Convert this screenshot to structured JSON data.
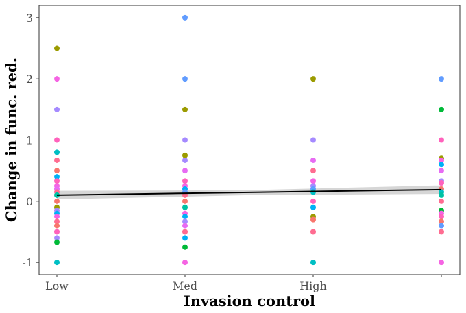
{
  "chart_data": {
    "type": "scatter",
    "title": "",
    "xlabel": "Invasion control",
    "ylabel": "Change in func. red.",
    "x_categories": [
      "Low",
      "Med",
      "High",
      ""
    ],
    "x_tick_labels": [
      "Low",
      "Med",
      "High"
    ],
    "ylim": [
      -1.2,
      3.2
    ],
    "yticks": [
      -1,
      0,
      1,
      2,
      3
    ],
    "grid": false,
    "legend": "none",
    "points": [
      {
        "x": 0,
        "y": 2.5,
        "color": "#9B9B00"
      },
      {
        "x": 0,
        "y": 2.0,
        "color": "#F564E3"
      },
      {
        "x": 0,
        "y": 1.5,
        "color": "#A58AFF"
      },
      {
        "x": 0,
        "y": 1.0,
        "color": "#FF62BC"
      },
      {
        "x": 0,
        "y": 0.8,
        "color": "#00BFC4"
      },
      {
        "x": 0,
        "y": 0.67,
        "color": "#FF6C91"
      },
      {
        "x": 0,
        "y": 0.5,
        "color": "#F8766D"
      },
      {
        "x": 0,
        "y": 0.4,
        "color": "#00B0F6"
      },
      {
        "x": 0,
        "y": 0.33,
        "color": "#FF62BC"
      },
      {
        "x": 0,
        "y": 0.25,
        "color": "#F564E3"
      },
      {
        "x": 0,
        "y": 0.2,
        "color": "#E76BF3"
      },
      {
        "x": 0,
        "y": 0.15,
        "color": "#FF6C91"
      },
      {
        "x": 0,
        "y": 0.1,
        "color": "#00C1A3"
      },
      {
        "x": 0,
        "y": 0.0,
        "color": "#F8766D"
      },
      {
        "x": 0,
        "y": -0.1,
        "color": "#9B9B00"
      },
      {
        "x": 0,
        "y": -0.15,
        "color": "#A58AFF"
      },
      {
        "x": 0,
        "y": -0.2,
        "color": "#00B0F6"
      },
      {
        "x": 0,
        "y": -0.25,
        "color": "#F564E3"
      },
      {
        "x": 0,
        "y": -0.33,
        "color": "#FF6C91"
      },
      {
        "x": 0,
        "y": -0.4,
        "color": "#F8766D"
      },
      {
        "x": 0,
        "y": -0.5,
        "color": "#FF62BC"
      },
      {
        "x": 0,
        "y": -0.6,
        "color": "#A58AFF"
      },
      {
        "x": 0,
        "y": -0.67,
        "color": "#00BA38"
      },
      {
        "x": 0,
        "y": -1.0,
        "color": "#00BFC4"
      },
      {
        "x": 1,
        "y": 3.0,
        "color": "#619CFF"
      },
      {
        "x": 1,
        "y": 2.0,
        "color": "#619CFF"
      },
      {
        "x": 1,
        "y": 1.5,
        "color": "#9B9B00"
      },
      {
        "x": 1,
        "y": 1.0,
        "color": "#A58AFF"
      },
      {
        "x": 1,
        "y": 0.75,
        "color": "#9B9B00"
      },
      {
        "x": 1,
        "y": 0.67,
        "color": "#A58AFF"
      },
      {
        "x": 1,
        "y": 0.5,
        "color": "#E76BF3"
      },
      {
        "x": 1,
        "y": 0.33,
        "color": "#FF62BC"
      },
      {
        "x": 1,
        "y": 0.25,
        "color": "#F564E3"
      },
      {
        "x": 1,
        "y": 0.2,
        "color": "#00B0F6"
      },
      {
        "x": 1,
        "y": 0.15,
        "color": "#619CFF"
      },
      {
        "x": 1,
        "y": 0.1,
        "color": "#FF6C91"
      },
      {
        "x": 1,
        "y": 0.0,
        "color": "#F8766D"
      },
      {
        "x": 1,
        "y": -0.1,
        "color": "#00C1A3"
      },
      {
        "x": 1,
        "y": -0.2,
        "color": "#F564E3"
      },
      {
        "x": 1,
        "y": -0.25,
        "color": "#00B0F6"
      },
      {
        "x": 1,
        "y": -0.33,
        "color": "#A58AFF"
      },
      {
        "x": 1,
        "y": -0.4,
        "color": "#E76BF3"
      },
      {
        "x": 1,
        "y": -0.5,
        "color": "#FF6C91"
      },
      {
        "x": 1,
        "y": -0.6,
        "color": "#00B0F6"
      },
      {
        "x": 1,
        "y": -0.75,
        "color": "#00BA38"
      },
      {
        "x": 1,
        "y": -1.0,
        "color": "#F564E3"
      },
      {
        "x": 2,
        "y": 2.0,
        "color": "#9B9B00"
      },
      {
        "x": 2,
        "y": 1.0,
        "color": "#A58AFF"
      },
      {
        "x": 2,
        "y": 0.67,
        "color": "#E76BF3"
      },
      {
        "x": 2,
        "y": 0.5,
        "color": "#FF6C91"
      },
      {
        "x": 2,
        "y": 0.33,
        "color": "#F564E3"
      },
      {
        "x": 2,
        "y": 0.25,
        "color": "#A58AFF"
      },
      {
        "x": 2,
        "y": 0.2,
        "color": "#619CFF"
      },
      {
        "x": 2,
        "y": 0.15,
        "color": "#00BFC4"
      },
      {
        "x": 2,
        "y": 0.0,
        "color": "#FF62BC"
      },
      {
        "x": 2,
        "y": -0.1,
        "color": "#00B0F6"
      },
      {
        "x": 2,
        "y": -0.25,
        "color": "#9B9B00"
      },
      {
        "x": 2,
        "y": -0.3,
        "color": "#F8766D"
      },
      {
        "x": 2,
        "y": -0.5,
        "color": "#FF6C91"
      },
      {
        "x": 2,
        "y": -1.0,
        "color": "#00BFC4"
      },
      {
        "x": 3,
        "y": 2.0,
        "color": "#619CFF"
      },
      {
        "x": 3,
        "y": 1.5,
        "color": "#00BA38"
      },
      {
        "x": 3,
        "y": 1.0,
        "color": "#FF62BC"
      },
      {
        "x": 3,
        "y": 0.7,
        "color": "#9B9B00"
      },
      {
        "x": 3,
        "y": 0.67,
        "color": "#F564E3"
      },
      {
        "x": 3,
        "y": 0.6,
        "color": "#00B0F6"
      },
      {
        "x": 3,
        "y": 0.5,
        "color": "#E76BF3"
      },
      {
        "x": 3,
        "y": 0.33,
        "color": "#A58AFF"
      },
      {
        "x": 3,
        "y": 0.3,
        "color": "#FF62BC"
      },
      {
        "x": 3,
        "y": 0.2,
        "color": "#F8766D"
      },
      {
        "x": 3,
        "y": 0.15,
        "color": "#00BFC4"
      },
      {
        "x": 3,
        "y": 0.1,
        "color": "#00C1A3"
      },
      {
        "x": 3,
        "y": 0.0,
        "color": "#FF6C91"
      },
      {
        "x": 3,
        "y": -0.15,
        "color": "#00BA38"
      },
      {
        "x": 3,
        "y": -0.2,
        "color": "#F564E3"
      },
      {
        "x": 3,
        "y": -0.25,
        "color": "#FF62BC"
      },
      {
        "x": 3,
        "y": -0.33,
        "color": "#F8766D"
      },
      {
        "x": 3,
        "y": -0.4,
        "color": "#619CFF"
      },
      {
        "x": 3,
        "y": -0.5,
        "color": "#FF6C91"
      },
      {
        "x": 3,
        "y": -1.0,
        "color": "#F564E3"
      }
    ],
    "trend_line": {
      "x": [
        0,
        3
      ],
      "y": [
        0.1,
        0.19
      ],
      "color": "#000000"
    },
    "confidence_band": {
      "x": [
        0,
        1.5,
        3
      ],
      "upper": [
        0.17,
        0.18,
        0.26
      ],
      "lower": [
        0.03,
        0.1,
        0.12
      ],
      "color": "#cccccc"
    }
  }
}
